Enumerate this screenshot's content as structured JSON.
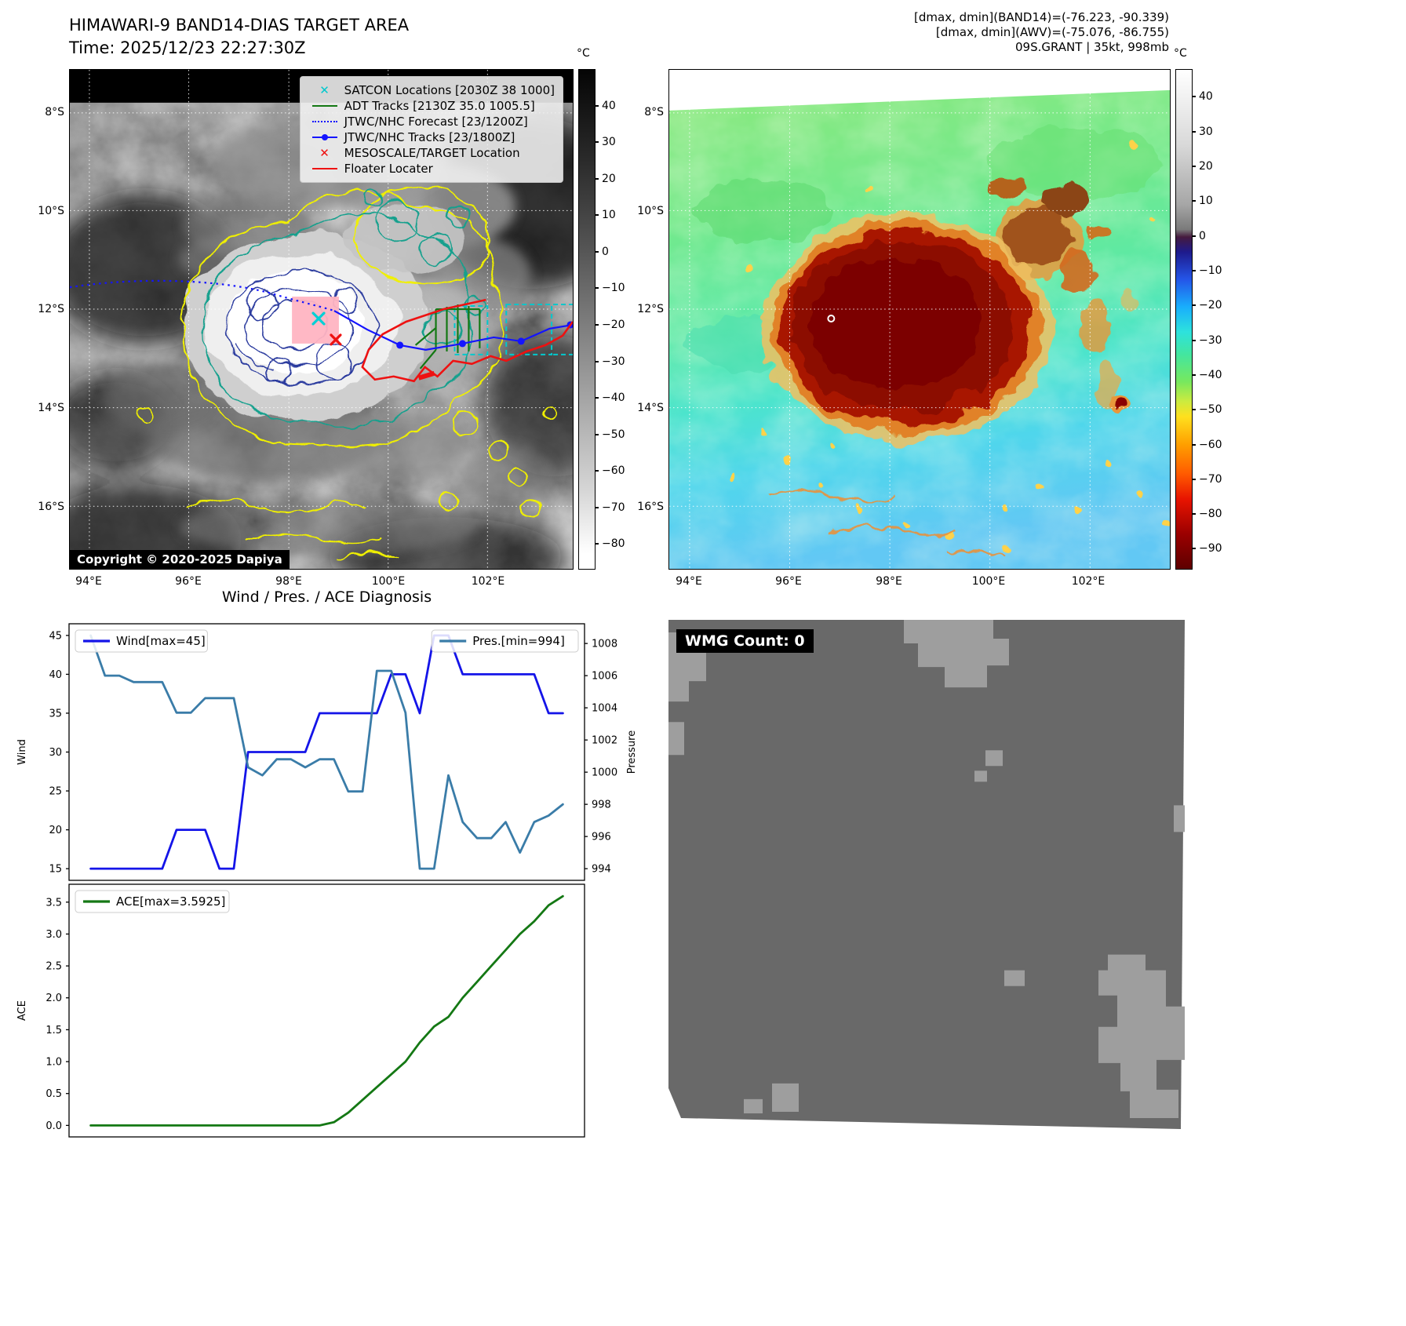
{
  "ir_panel": {
    "title": "HIMAWARI-9 BAND14-DIAS TARGET AREA",
    "time_line": "Time: 2025/12/23 22:27:30Z",
    "copyright": "Copyright © 2020-2025 Dapiya",
    "legend": [
      {
        "label": "SATCON Locations [2030Z 38 1000]",
        "marker": "x",
        "color": "#00c8cd",
        "icon": "satcon-x-marker-icon"
      },
      {
        "label": "ADT Tracks [2130Z 35.0 1005.5]",
        "marker": "line",
        "color": "#137813",
        "icon": "adt-track-line-icon"
      },
      {
        "label": "JTWC/NHC Forecast [23/1200Z]",
        "marker": "dotted",
        "color": "#1414ff",
        "icon": "forecast-dotted-line-icon"
      },
      {
        "label": "JTWC/NHC Tracks [23/1800Z]",
        "marker": "line-dot",
        "color": "#1414ff",
        "icon": "jtwc-track-line-icon"
      },
      {
        "label": "MESOSCALE/TARGET Location",
        "marker": "x",
        "color": "#ee1111",
        "icon": "target-x-marker-icon"
      },
      {
        "label": "Floater Locater",
        "marker": "line",
        "color": "#ee1111",
        "icon": "floater-line-icon"
      }
    ],
    "lat_ticks": [
      "8°S",
      "10°S",
      "12°S",
      "14°S",
      "16°S"
    ],
    "lon_ticks": [
      "94°E",
      "96°E",
      "98°E",
      "100°E",
      "102°E"
    ],
    "colorbar": {
      "unit": "°C",
      "range": [
        50,
        -87
      ],
      "ticks": [
        40,
        30,
        20,
        10,
        0,
        -10,
        -20,
        -30,
        -40,
        -50,
        -60,
        -70,
        -80
      ]
    }
  },
  "awv_panel": {
    "header": [
      "[dmax, dmin](BAND14)=(-76.223, -90.339)",
      "[dmax, dmin](AWV)=(-75.076, -86.755)",
      "09S.GRANT | 35kt, 998mb"
    ],
    "lat_ticks": [
      "8°S",
      "10°S",
      "12°S",
      "14°S",
      "16°S"
    ],
    "lon_ticks": [
      "94°E",
      "96°E",
      "98°E",
      "100°E",
      "102°E"
    ],
    "colorbar": {
      "unit": "°C",
      "range": [
        48,
        -96
      ],
      "ticks": [
        40,
        30,
        20,
        10,
        0,
        -10,
        -20,
        -30,
        -40,
        -50,
        -60,
        -70,
        -80,
        -90
      ]
    }
  },
  "wmg_panel": {
    "label": "WMG Count: 0"
  },
  "charts_title": "Wind / Pres. / ACE Diagnosis",
  "chart_data": [
    {
      "type": "line",
      "title": "Wind / Pres. / ACE Diagnosis",
      "x_ticks_hidden": true,
      "left_axis": {
        "label": "Wind",
        "range": [
          13.5,
          46.5
        ],
        "ticks": [
          "15",
          "20",
          "25",
          "30",
          "35",
          "40",
          "45"
        ]
      },
      "right_axis": {
        "label": "Pressure",
        "range": [
          993.275,
          1009.225
        ],
        "ticks": [
          "994",
          "996",
          "998",
          "1000",
          "1002",
          "1004",
          "1006",
          "1008"
        ]
      },
      "series": [
        {
          "name": "Wind[max=45]",
          "color": "#1414e8",
          "axis": "left",
          "legend_pos": "left",
          "values": [
            15,
            15,
            15,
            15,
            15,
            15,
            20,
            20,
            20,
            15,
            15,
            30,
            30,
            30,
            30,
            30,
            35,
            35,
            35,
            35,
            35,
            40,
            40,
            35,
            45,
            45,
            40,
            40,
            40,
            40,
            40,
            40,
            35,
            35
          ]
        },
        {
          "name": "Pres.[min=994]",
          "color": "#3a7ca8",
          "axis": "right",
          "legend_pos": "right",
          "values": [
            1008.5,
            1006,
            1006,
            1005.6,
            1005.6,
            1005.6,
            1003.7,
            1003.7,
            1004.6,
            1004.6,
            1004.6,
            1000.3,
            999.8,
            1000.8,
            1000.8,
            1000.3,
            1000.8,
            1000.8,
            998.8,
            998.8,
            1006.3,
            1006.3,
            1003.7,
            994,
            994,
            999.8,
            996.9,
            995.9,
            995.9,
            996.9,
            995,
            996.9,
            997.3,
            998
          ]
        }
      ]
    },
    {
      "type": "line",
      "x_ticks_hidden": true,
      "left_axis": {
        "label": "ACE",
        "range": [
          -0.18,
          3.78
        ],
        "ticks": [
          "0.0",
          "0.5",
          "1.0",
          "1.5",
          "2.0",
          "2.5",
          "3.0",
          "3.5"
        ]
      },
      "series": [
        {
          "name": "ACE[max=3.5925]",
          "color": "#147814",
          "axis": "left",
          "legend_pos": "left",
          "values": [
            0,
            0,
            0,
            0,
            0,
            0,
            0,
            0,
            0,
            0,
            0,
            0,
            0,
            0,
            0,
            0,
            0,
            0.05,
            0.2,
            0.4,
            0.6,
            0.8,
            1.0,
            1.3,
            1.55,
            1.7,
            2.0,
            2.25,
            2.5,
            2.75,
            3.0,
            3.2,
            3.45,
            3.5925
          ]
        }
      ]
    }
  ]
}
